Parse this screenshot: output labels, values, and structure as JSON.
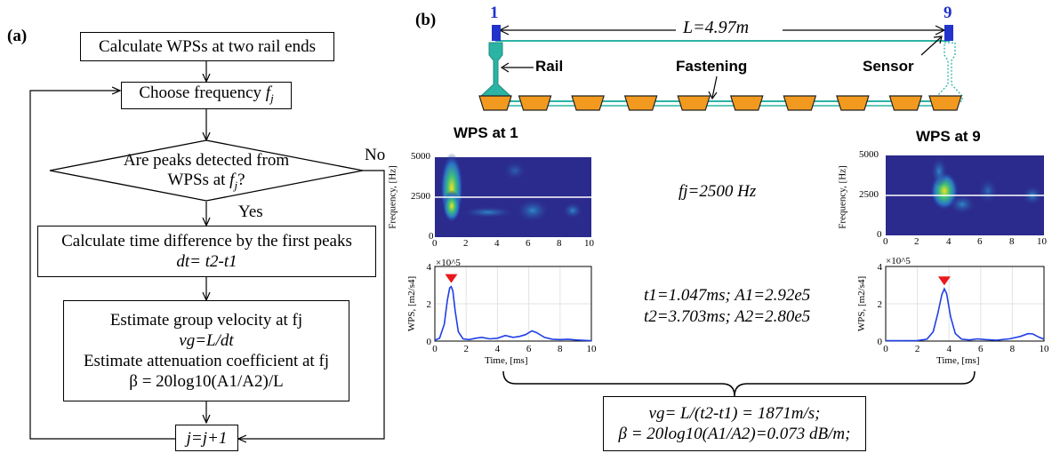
{
  "panel_a": {
    "label": "(a)",
    "box1": "Calculate WPSs at two rail ends",
    "box2_prefix": "Choose frequency ",
    "box2_var": "f",
    "box2_sub": "j",
    "diamond_line1": "Are peaks detected from",
    "diamond_line2_prefix": "WPSs at ",
    "diamond_line2_var": "f",
    "diamond_line2_sub": "j",
    "diamond_line2_suffix": "?",
    "no_label": "No",
    "yes_label": "Yes",
    "box3_line1": "Calculate time difference by the first peaks",
    "box3_line2": "dt= t2-t1",
    "box4_line1": "Estimate group velocity at fj",
    "box4_line2": "vg=L/dt",
    "box4_line3": "Estimate attenuation coefficient at fj",
    "box4_line4": "β = 20log10(A1/A2)/L",
    "box5": "j=j+1"
  },
  "panel_b": {
    "label": "(b)",
    "node_start": "1",
    "node_end": "9",
    "length_label": "L=4.97m",
    "rail_label": "Rail",
    "fastening_label": "Fastening",
    "sensor_label": "Sensor",
    "wps1_title": "WPS at 1",
    "wps9_title": "WPS at 9",
    "freq_label": "fj=2500 Hz",
    "peak_line1": "t1=1.047ms; A1=2.92e5",
    "peak_line2": "t2=3.703ms; A2=2.80e5",
    "result_line1": "vg= L/(t2-t1) = 1871m/s;",
    "result_line2": "β = 20log10(A1/A2)=0.073 dB/m;",
    "colors": {
      "rail": "#2bb3a3",
      "fastening": "#f29a1f",
      "sensor": "#2233cc",
      "curve": "#1f3fe6",
      "marker": "#e8191d"
    }
  },
  "spectrogram": {
    "ylabel": "Frequency, [Hz]",
    "yticks": [
      "5000",
      "2500",
      "0"
    ],
    "xticks": [
      "0",
      "2",
      "4",
      "6",
      "8",
      "10"
    ]
  },
  "chart_data": [
    {
      "type": "line",
      "title": "WPS at 1",
      "xlabel": "Time, [ms]",
      "ylabel": "WPS, [m2/s4]",
      "exponent": "×10^5",
      "xlim": [
        0,
        10
      ],
      "ylim": [
        0,
        4
      ],
      "xticks": [
        "0",
        "2",
        "4",
        "6",
        "8",
        "10"
      ],
      "yticks": [
        "0",
        "2",
        "4"
      ],
      "x": [
        0,
        0.3,
        0.6,
        0.8,
        0.95,
        1.047,
        1.15,
        1.3,
        1.5,
        1.8,
        2.2,
        2.6,
        3.0,
        3.5,
        4.0,
        4.5,
        5.0,
        5.4,
        5.8,
        6.2,
        6.5,
        7.0,
        7.5,
        8.0,
        8.5,
        9.0,
        9.5,
        10.0
      ],
      "y": [
        0.05,
        0.15,
        0.9,
        2.2,
        2.85,
        2.92,
        2.7,
        1.6,
        0.5,
        0.12,
        0.08,
        0.15,
        0.2,
        0.12,
        0.15,
        0.3,
        0.2,
        0.25,
        0.35,
        0.55,
        0.45,
        0.2,
        0.1,
        0.08,
        0.1,
        0.06,
        0.04,
        0.02
      ],
      "peak": {
        "x": 1.047,
        "y": 2.92
      }
    },
    {
      "type": "line",
      "title": "WPS at 9",
      "xlabel": "Time, [ms]",
      "ylabel": "WPS, [m2/s4]",
      "exponent": "×10^5",
      "xlim": [
        0,
        10
      ],
      "ylim": [
        0,
        4
      ],
      "xticks": [
        "0",
        "2",
        "4",
        "6",
        "8",
        "10"
      ],
      "yticks": [
        "0",
        "2",
        "4"
      ],
      "x": [
        0,
        1.0,
        2.0,
        2.6,
        3.0,
        3.3,
        3.55,
        3.703,
        3.85,
        4.1,
        4.4,
        4.8,
        5.3,
        5.8,
        6.3,
        7.0,
        7.8,
        8.5,
        9.0,
        9.3,
        9.7,
        10.0
      ],
      "y": [
        0.02,
        0.02,
        0.03,
        0.1,
        0.5,
        1.5,
        2.5,
        2.8,
        2.55,
        1.3,
        0.4,
        0.1,
        0.06,
        0.12,
        0.08,
        0.05,
        0.12,
        0.25,
        0.4,
        0.38,
        0.2,
        0.1
      ],
      "peak": {
        "x": 3.703,
        "y": 2.8
      }
    }
  ]
}
